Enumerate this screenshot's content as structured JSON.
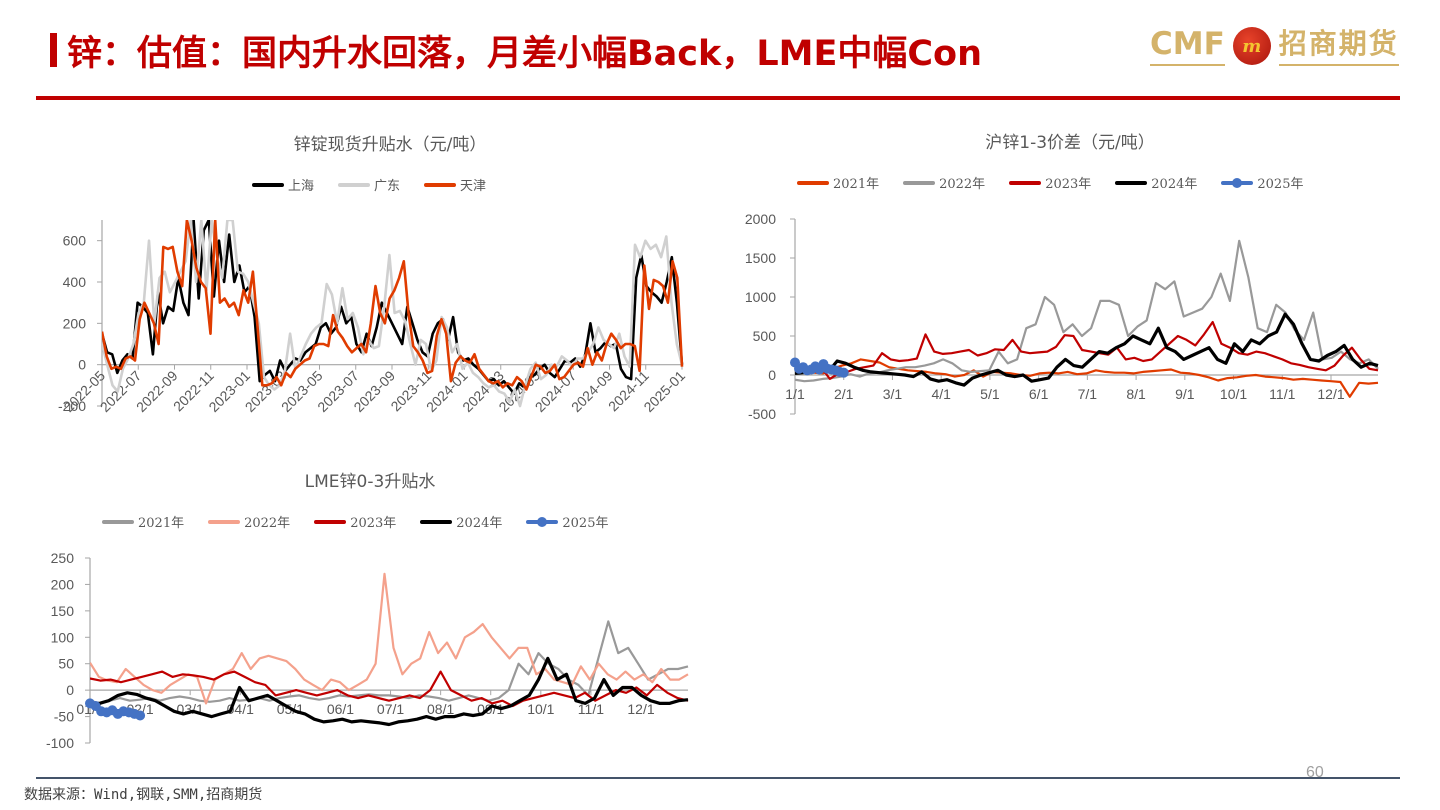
{
  "header": {
    "title": "锌：估值：国内升水回落，月差小幅Back，LME中幅Con",
    "logo_cmf": "CMF",
    "logo_badge": "m",
    "logo_cn": "招商期货"
  },
  "colors": {
    "title_red": "#c00000",
    "gold": "#d4b36a",
    "footer_rule": "#44546a"
  },
  "footer": {
    "source": "数据来源：Wind,钢联,SMM,招商期货",
    "page_number": "60"
  },
  "chart_data": [
    {
      "id": "spot-premium",
      "type": "line",
      "title": "锌锭现货升贴水（元/吨）",
      "xlabel": "",
      "ylabel": "",
      "ylim": [
        -200,
        700
      ],
      "yticks": [
        -200,
        0,
        200,
        400,
        600
      ],
      "xticks": [
        "2022-05",
        "2022-07",
        "2022-09",
        "2022-11",
        "2023-01",
        "2023-03",
        "2023-05",
        "2023-07",
        "2023-09",
        "2023-11",
        "2024-01",
        "2024-03",
        "2024-05",
        "2024-07",
        "2024-09",
        "2024-11",
        "2025-01"
      ],
      "legend_position": "top",
      "grid": false,
      "series": [
        {
          "name": "上海",
          "color": "#000000",
          "width": 2.6,
          "values": [
            150,
            60,
            50,
            -40,
            20,
            50,
            30,
            300,
            280,
            250,
            50,
            350,
            200,
            280,
            260,
            420,
            300,
            240,
            700,
            320,
            650,
            700,
            330,
            600,
            400,
            630,
            400,
            480,
            350,
            380,
            230,
            -80,
            -50,
            -30,
            -80,
            20,
            -30,
            0,
            30,
            20,
            60,
            80,
            100,
            180,
            200,
            150,
            180,
            280,
            200,
            230,
            100,
            60,
            150,
            90,
            180,
            300,
            250,
            200,
            150,
            100,
            280,
            200,
            120,
            60,
            40,
            150,
            200,
            220,
            120,
            230,
            60,
            20,
            30,
            0,
            -20,
            -50,
            -80,
            -70,
            -100,
            -80,
            -110,
            -140,
            -90,
            -110,
            -60,
            -50,
            -20,
            0,
            -40,
            -60,
            -20,
            20,
            10,
            30,
            -10,
            50,
            200,
            60,
            80,
            110,
            90,
            100,
            -20,
            -60,
            -70,
            420,
            530,
            380,
            350,
            330,
            300,
            400,
            520,
            300,
            0
          ]
        },
        {
          "name": "广东",
          "color": "#d0d0d0",
          "width": 2.6,
          "values": [
            100,
            0,
            -100,
            -130,
            -20,
            30,
            100,
            250,
            300,
            600,
            200,
            420,
            450,
            350,
            400,
            450,
            500,
            700,
            400,
            700,
            360,
            700,
            520,
            420,
            700,
            700,
            450,
            440,
            400,
            300,
            200,
            -60,
            -100,
            -120,
            -100,
            -30,
            150,
            -20,
            40,
            100,
            150,
            180,
            200,
            390,
            340,
            200,
            370,
            220,
            250,
            180,
            50,
            120,
            80,
            90,
            280,
            530,
            250,
            260,
            210,
            100,
            0,
            120,
            100,
            -30,
            20,
            230,
            180,
            60,
            100,
            -20,
            10,
            -40,
            -60,
            -90,
            -110,
            -100,
            -130,
            -140,
            -180,
            -120,
            -200,
            -100,
            -20,
            10,
            -70,
            -50,
            0,
            -10,
            40,
            20,
            -10,
            30,
            30,
            60,
            100,
            180,
            120,
            100,
            80,
            150,
            40,
            -10,
            580,
            520,
            600,
            560,
            580,
            520,
            620,
            300,
            100,
            0
          ]
        },
        {
          "name": "天津",
          "color": "#e03c00",
          "width": 2.6,
          "values": [
            160,
            40,
            -20,
            -10,
            -20,
            30,
            40,
            20,
            220,
            300,
            250,
            200,
            100,
            570,
            560,
            570,
            450,
            380,
            700,
            600,
            470,
            400,
            370,
            150,
            700,
            300,
            320,
            280,
            300,
            240,
            360,
            300,
            450,
            180,
            -100,
            -100,
            -90,
            -60,
            -100,
            -40,
            -60,
            -20,
            0,
            20,
            30,
            90,
            100,
            100,
            90,
            240,
            160,
            130,
            90,
            60,
            80,
            100,
            60,
            200,
            380,
            250,
            200,
            320,
            360,
            420,
            500,
            250,
            90,
            60,
            20,
            -40,
            -30,
            140,
            220,
            150,
            -80,
            10,
            40,
            20,
            10,
            50,
            -20,
            -50,
            -80,
            -90,
            -80,
            -110,
            -90,
            -100,
            -60,
            -80,
            -120,
            -60,
            0,
            -10,
            -40,
            -30,
            0,
            -70,
            -60,
            -30,
            0,
            10,
            -10,
            80,
            0,
            60,
            20,
            100,
            150,
            120,
            80,
            100,
            100,
            90,
            -30,
            480,
            270,
            410,
            400,
            380,
            300,
            500,
            420,
            -10
          ]
        }
      ]
    },
    {
      "id": "shfe-1-3-spread",
      "type": "line",
      "title": "沪锌1-3价差（元/吨）",
      "xlabel": "",
      "ylabel": "",
      "ylim": [
        -500,
        2000
      ],
      "yticks": [
        -500,
        0,
        500,
        1000,
        1500,
        2000
      ],
      "xticks": [
        "1/1",
        "2/1",
        "3/1",
        "4/1",
        "5/1",
        "6/1",
        "7/1",
        "8/1",
        "9/1",
        "10/1",
        "11/1",
        "12/1"
      ],
      "legend_position": "top",
      "grid": false,
      "series": [
        {
          "name": "2021年",
          "color": "#e03c00",
          "width": 2.2,
          "values": [
            60,
            50,
            30,
            20,
            80,
            120,
            150,
            200,
            180,
            160,
            100,
            80,
            60,
            50,
            40,
            20,
            10,
            -20,
            0,
            60,
            -20,
            40,
            30,
            20,
            0,
            -10,
            20,
            30,
            20,
            40,
            10,
            20,
            60,
            40,
            30,
            30,
            20,
            40,
            50,
            60,
            70,
            30,
            20,
            0,
            -30,
            -70,
            -40,
            -30,
            -10,
            0,
            -20,
            -30,
            -40,
            -60,
            -50,
            -60,
            -70,
            -80,
            -90,
            -280,
            -100,
            -110,
            -100
          ]
        },
        {
          "name": "2022年",
          "color": "#999999",
          "width": 2.2,
          "values": [
            -60,
            -80,
            -70,
            -50,
            -40,
            -20,
            10,
            -20,
            20,
            30,
            60,
            80,
            100,
            100,
            120,
            150,
            200,
            150,
            60,
            40,
            50,
            60,
            300,
            150,
            200,
            600,
            650,
            1000,
            900,
            550,
            650,
            500,
            600,
            950,
            950,
            900,
            500,
            620,
            700,
            1180,
            1100,
            1200,
            750,
            800,
            850,
            1000,
            1300,
            950,
            1720,
            1250,
            600,
            550,
            900,
            800,
            580,
            450,
            800,
            200,
            220,
            300,
            200,
            150,
            200,
            80
          ]
        },
        {
          "name": "2023年",
          "color": "#c00000",
          "width": 2.2,
          "values": [
            30,
            50,
            30,
            100,
            -50,
            20,
            40,
            80,
            100,
            120,
            280,
            200,
            180,
            190,
            210,
            520,
            300,
            270,
            280,
            300,
            320,
            250,
            280,
            330,
            320,
            450,
            300,
            280,
            290,
            300,
            360,
            510,
            500,
            320,
            300,
            280,
            260,
            350,
            200,
            220,
            180,
            200,
            300,
            400,
            500,
            450,
            380,
            520,
            680,
            400,
            350,
            280,
            260,
            300,
            280,
            240,
            200,
            150,
            130,
            100,
            80,
            60,
            120,
            250,
            350,
            200,
            80,
            60
          ]
        },
        {
          "name": "2024年",
          "color": "#000000",
          "width": 3.2,
          "values": [
            20,
            30,
            60,
            80,
            50,
            180,
            150,
            100,
            60,
            40,
            30,
            20,
            10,
            0,
            -20,
            40,
            -50,
            -80,
            -60,
            -100,
            -130,
            -40,
            0,
            30,
            60,
            0,
            -20,
            0,
            -80,
            -60,
            -40,
            100,
            200,
            120,
            100,
            200,
            300,
            280,
            350,
            400,
            500,
            450,
            400,
            600,
            350,
            300,
            200,
            250,
            300,
            350,
            200,
            150,
            400,
            300,
            450,
            400,
            500,
            550,
            780,
            650,
            400,
            200,
            180,
            250,
            300,
            380,
            200,
            100,
            150,
            120
          ]
        },
        {
          "name": "2025年",
          "color": "#4472c4",
          "width": 3.2,
          "marker": true,
          "values": [
            160,
            80,
            100,
            60,
            70,
            110,
            70,
            140,
            80,
            70,
            60,
            40,
            30
          ]
        }
      ]
    },
    {
      "id": "lme-0-3-spread",
      "type": "line",
      "title": "LME锌0-3升贴水",
      "xlabel": "",
      "ylabel": "",
      "ylim": [
        -100,
        250
      ],
      "yticks": [
        -100,
        -50,
        0,
        50,
        100,
        150,
        200,
        250
      ],
      "xticks": [
        "01/1",
        "02/1",
        "03/1",
        "04/1",
        "05/1",
        "06/1",
        "07/1",
        "08/1",
        "09/1",
        "10/1",
        "11/1",
        "12/1"
      ],
      "legend_position": "top",
      "grid": false,
      "series": [
        {
          "name": "2021年",
          "color": "#999999",
          "width": 2.2,
          "values": [
            -20,
            -25,
            -20,
            -15,
            -20,
            -18,
            -15,
            -20,
            -15,
            -12,
            -15,
            -20,
            -22,
            -20,
            -15,
            -20,
            -18,
            -15,
            -20,
            -15,
            -12,
            -10,
            -15,
            -18,
            -15,
            -10,
            -12,
            -10,
            -8,
            -10,
            -10,
            -12,
            -15,
            -10,
            -12,
            -15,
            -20,
            -15,
            -10,
            -15,
            -20,
            -15,
            0,
            50,
            30,
            70,
            50,
            40,
            20,
            10,
            -10,
            60,
            130,
            70,
            80,
            50,
            20,
            30,
            40,
            40,
            45
          ]
        },
        {
          "name": "2022年",
          "color": "#f4a18c",
          "width": 2.2,
          "values": [
            52,
            25,
            18,
            15,
            40,
            25,
            10,
            0,
            -5,
            10,
            20,
            30,
            25,
            -25,
            20,
            30,
            40,
            70,
            40,
            60,
            65,
            60,
            55,
            40,
            20,
            10,
            0,
            20,
            15,
            0,
            10,
            20,
            50,
            220,
            80,
            30,
            50,
            60,
            110,
            70,
            90,
            60,
            100,
            110,
            125,
            100,
            80,
            60,
            80,
            80,
            30,
            40,
            20,
            15,
            10,
            45,
            20,
            50,
            30,
            20,
            35,
            20,
            30,
            15,
            40,
            20,
            20,
            30
          ]
        },
        {
          "name": "2023年",
          "color": "#c00000",
          "width": 2.2,
          "values": [
            22,
            18,
            20,
            15,
            20,
            25,
            30,
            35,
            25,
            30,
            28,
            25,
            20,
            30,
            35,
            25,
            15,
            10,
            -10,
            -5,
            0,
            -5,
            -10,
            -5,
            0,
            -10,
            -15,
            -10,
            -15,
            -20,
            -15,
            -10,
            -15,
            0,
            35,
            0,
            -10,
            -20,
            -15,
            -25,
            -20,
            -30,
            -20,
            -15,
            -10,
            -5,
            -10,
            -15,
            -5,
            -20,
            -10,
            0,
            -5,
            5,
            -10,
            10,
            -5,
            -15,
            -20
          ]
        },
        {
          "name": "2024年",
          "color": "#000000",
          "width": 3.2,
          "values": [
            -25,
            -25,
            -20,
            -10,
            -5,
            -8,
            -15,
            -20,
            -30,
            -40,
            -45,
            -40,
            -45,
            -50,
            -45,
            -40,
            5,
            -20,
            -15,
            -10,
            -20,
            -30,
            -40,
            -45,
            -55,
            -60,
            -58,
            -55,
            -60,
            -58,
            -60,
            -62,
            -65,
            -60,
            -58,
            -55,
            -50,
            -55,
            -50,
            -50,
            -45,
            -48,
            -45,
            -30,
            -35,
            -30,
            -20,
            -10,
            20,
            60,
            20,
            30,
            -20,
            -25,
            -15,
            20,
            -10,
            5,
            5,
            -10,
            -20,
            -25,
            -25,
            -20,
            -18
          ]
        },
        {
          "name": "2025年",
          "color": "#4472c4",
          "width": 3.2,
          "marker": true,
          "values": [
            -25,
            -30,
            -40,
            -42,
            -38,
            -45,
            -40,
            -42,
            -45,
            -48
          ]
        }
      ]
    }
  ]
}
